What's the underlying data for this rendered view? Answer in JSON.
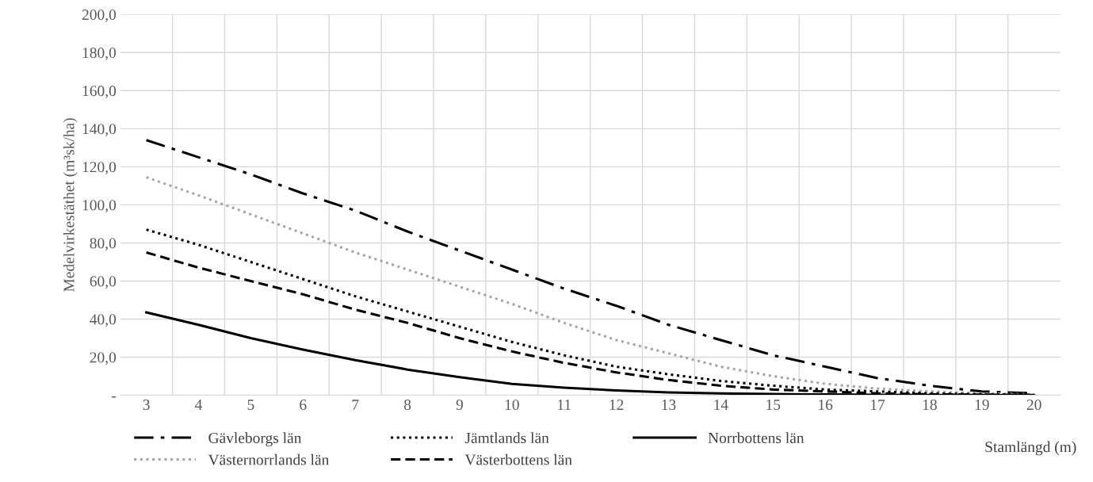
{
  "chart_data": {
    "type": "line",
    "xlabel": "Stamlängd (m)",
    "ylabel": "Medelvirkestäthet (m³sk/ha)",
    "categories": [
      "3",
      "4",
      "5",
      "6",
      "7",
      "8",
      "9",
      "10",
      "11",
      "12",
      "13",
      "14",
      "15",
      "16",
      "17",
      "18",
      "19",
      "20"
    ],
    "series": [
      {
        "name": "Gävleborgs län",
        "color": "#000000",
        "line_style": "dashdot",
        "values": [
          134,
          125,
          116,
          106,
          97,
          86,
          76,
          66,
          56,
          47,
          37,
          29,
          21,
          15,
          9,
          5,
          2,
          1
        ]
      },
      {
        "name": "Västernorrlands län",
        "color": "#a6a6a6",
        "line_style": "dotted",
        "values": [
          114.5,
          105,
          95,
          85,
          75,
          66,
          57,
          48,
          38,
          29,
          22,
          15,
          10,
          6,
          3.5,
          2,
          1,
          0.5
        ]
      },
      {
        "name": "Jämtlands län",
        "color": "#000000",
        "line_style": "dotted",
        "values": [
          87,
          79,
          70,
          61,
          52,
          44,
          36,
          28,
          21,
          15,
          11,
          7.5,
          5,
          3,
          2,
          1,
          0.5,
          0.2
        ]
      },
      {
        "name": "Västerbottens län",
        "color": "#000000",
        "line_style": "dashed",
        "values": [
          75,
          67,
          60,
          53,
          45,
          38,
          30,
          23,
          17,
          12,
          8,
          5,
          3,
          2,
          1,
          0.5,
          0.3,
          0.1
        ]
      },
      {
        "name": "Norrbottens län",
        "color": "#000000",
        "line_style": "solid",
        "values": [
          43.5,
          37,
          30,
          24,
          18.5,
          13.5,
          9.5,
          6,
          4,
          2.5,
          1.5,
          1,
          0.6,
          0.4,
          0.2,
          0.1,
          0.1,
          0
        ]
      }
    ],
    "ylim": [
      0,
      200
    ],
    "yticks": [
      {
        "value": 0,
        "label": "-"
      },
      {
        "value": 20,
        "label": "20,0"
      },
      {
        "value": 40,
        "label": "40,0"
      },
      {
        "value": 60,
        "label": "60,0"
      },
      {
        "value": 80,
        "label": "80,0"
      },
      {
        "value": 100,
        "label": "100,0"
      },
      {
        "value": 120,
        "label": "120,0"
      },
      {
        "value": 140,
        "label": "140,0"
      },
      {
        "value": 160,
        "label": "160,0"
      },
      {
        "value": 180,
        "label": "180,0"
      },
      {
        "value": 200,
        "label": "200,0"
      }
    ],
    "grid": true,
    "legend": "bottom",
    "marker": "none"
  }
}
